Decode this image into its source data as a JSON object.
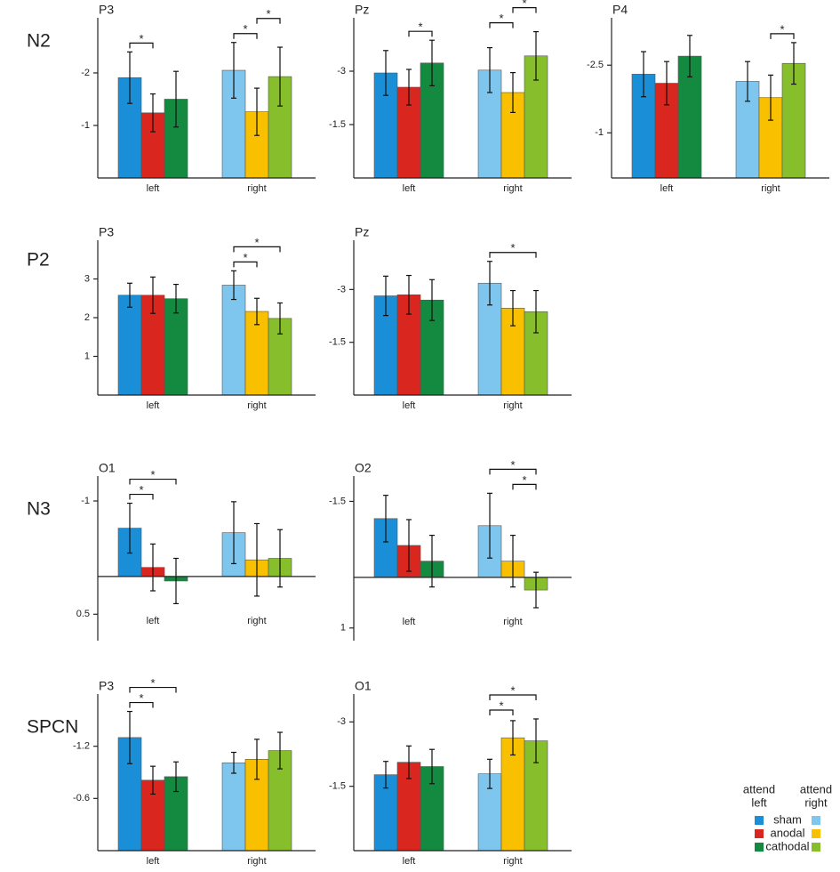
{
  "rows": [
    "N2",
    "P2",
    "N3",
    "SPCN"
  ],
  "legend_headers": [
    [
      "attend",
      "left"
    ],
    [
      "attend",
      "right"
    ]
  ],
  "chart_data": [
    {
      "type": "bar",
      "title": "P3",
      "categories": [
        "left",
        "right"
      ],
      "series": [
        {
          "name": "sham",
          "colors": [
            "#1a8fd8",
            "#7fc6ee"
          ],
          "values": [
            -1.91,
            -2.05
          ],
          "errors": [
            0.49,
            0.53
          ]
        },
        {
          "name": "anodal",
          "colors": [
            "#d9261f",
            "#f9c000"
          ],
          "values": [
            -1.24,
            -1.26
          ],
          "errors": [
            0.36,
            0.45
          ]
        },
        {
          "name": "cathodal",
          "colors": [
            "#138a40",
            "#86be2c"
          ],
          "values": [
            -1.5,
            -1.93
          ],
          "errors": [
            0.53,
            0.56
          ]
        }
      ],
      "ylim": [
        0,
        -3.05
      ],
      "yticks": [
        -2,
        -1
      ],
      "annotations": [
        {
          "label": "*",
          "bars": [
            [
              0,
              0
            ],
            [
              0,
              1
            ]
          ]
        },
        {
          "label": "*",
          "bars": [
            [
              1,
              0
            ],
            [
              1,
              1
            ]
          ]
        },
        {
          "label": "*",
          "bars": [
            [
              1,
              1
            ],
            [
              1,
              2
            ]
          ]
        }
      ]
    },
    {
      "type": "bar",
      "title": "Pz",
      "categories": [
        "left",
        "right"
      ],
      "series": [
        {
          "name": "sham",
          "colors": [
            "#1a8fd8",
            "#7fc6ee"
          ],
          "values": [
            -2.95,
            -3.03
          ],
          "errors": [
            0.63,
            0.63
          ]
        },
        {
          "name": "anodal",
          "colors": [
            "#d9261f",
            "#f9c000"
          ],
          "values": [
            -2.55,
            -2.4
          ],
          "errors": [
            0.5,
            0.56
          ]
        },
        {
          "name": "cathodal",
          "colors": [
            "#138a40",
            "#86be2c"
          ],
          "values": [
            -3.23,
            -3.43
          ],
          "errors": [
            0.64,
            0.68
          ]
        }
      ],
      "ylim": [
        0,
        -4.5
      ],
      "yticks": [
        -3,
        -1.5
      ],
      "annotations": [
        {
          "label": "*",
          "bars": [
            [
              0,
              1
            ],
            [
              0,
              2
            ]
          ]
        },
        {
          "label": "*",
          "bars": [
            [
              1,
              0
            ],
            [
              1,
              1
            ]
          ]
        },
        {
          "label": "*",
          "bars": [
            [
              1,
              1
            ],
            [
              1,
              2
            ]
          ]
        }
      ]
    },
    {
      "type": "bar",
      "title": "P4",
      "categories": [
        "left",
        "right"
      ],
      "series": [
        {
          "name": "sham",
          "colors": [
            "#1a8fd8",
            "#7fc6ee"
          ],
          "values": [
            -2.3,
            -2.14
          ],
          "errors": [
            0.5,
            0.44
          ]
        },
        {
          "name": "anodal",
          "colors": [
            "#d9261f",
            "#f9c000"
          ],
          "values": [
            -2.1,
            -1.78
          ],
          "errors": [
            0.48,
            0.5
          ]
        },
        {
          "name": "cathodal",
          "colors": [
            "#138a40",
            "#86be2c"
          ],
          "values": [
            -2.7,
            -2.54
          ],
          "errors": [
            0.46,
            0.46
          ]
        }
      ],
      "ylim": [
        0,
        -3.55
      ],
      "yticks": [
        -2.5,
        -1
      ],
      "annotations": [
        {
          "label": "*",
          "bars": [
            [
              1,
              1
            ],
            [
              1,
              2
            ]
          ]
        }
      ]
    },
    {
      "type": "bar",
      "title": "P3",
      "categories": [
        "left",
        "right"
      ],
      "series": [
        {
          "name": "sham",
          "colors": [
            "#1a8fd8",
            "#7fc6ee"
          ],
          "values": [
            2.58,
            2.84
          ],
          "errors": [
            0.31,
            0.37
          ]
        },
        {
          "name": "anodal",
          "colors": [
            "#d9261f",
            "#f9c000"
          ],
          "values": [
            2.58,
            2.16
          ],
          "errors": [
            0.47,
            0.34
          ]
        },
        {
          "name": "cathodal",
          "colors": [
            "#138a40",
            "#86be2c"
          ],
          "values": [
            2.49,
            1.98
          ],
          "errors": [
            0.37,
            0.4
          ]
        }
      ],
      "ylim": [
        0,
        4
      ],
      "yticks": [
        1,
        2,
        3
      ],
      "annotations": [
        {
          "label": "*",
          "bars": [
            [
              1,
              0
            ],
            [
              1,
              1
            ]
          ]
        },
        {
          "label": "*",
          "bars": [
            [
              1,
              0
            ],
            [
              1,
              2
            ]
          ]
        }
      ]
    },
    {
      "type": "bar",
      "title": "Pz",
      "categories": [
        "left",
        "right"
      ],
      "series": [
        {
          "name": "sham",
          "colors": [
            "#1a8fd8",
            "#7fc6ee"
          ],
          "values": [
            -2.82,
            -3.18
          ],
          "errors": [
            0.56,
            0.62
          ]
        },
        {
          "name": "anodal",
          "colors": [
            "#d9261f",
            "#f9c000"
          ],
          "values": [
            -2.85,
            -2.47
          ],
          "errors": [
            0.55,
            0.5
          ]
        },
        {
          "name": "cathodal",
          "colors": [
            "#138a40",
            "#86be2c"
          ],
          "values": [
            -2.7,
            -2.37
          ],
          "errors": [
            0.58,
            0.6
          ]
        }
      ],
      "ylim": [
        0,
        -4.4
      ],
      "yticks": [
        -3,
        -1.5
      ],
      "annotations": [
        {
          "label": "*",
          "bars": [
            [
              1,
              0
            ],
            [
              1,
              2
            ]
          ]
        }
      ]
    },
    {
      "type": "bar",
      "title": "O1",
      "categories": [
        "left",
        "right"
      ],
      "series": [
        {
          "name": "sham",
          "colors": [
            "#1a8fd8",
            "#7fc6ee"
          ],
          "values": [
            -0.64,
            -0.58
          ],
          "errors": [
            0.33,
            0.41
          ]
        },
        {
          "name": "anodal",
          "colors": [
            "#d9261f",
            "#f9c000"
          ],
          "values": [
            -0.12,
            -0.22
          ],
          "errors": [
            0.31,
            0.48
          ]
        },
        {
          "name": "cathodal",
          "colors": [
            "#138a40",
            "#86be2c"
          ],
          "values": [
            0.06,
            -0.24
          ],
          "errors": [
            0.3,
            0.38
          ]
        }
      ],
      "ylim": [
        0.85,
        -1.33
      ],
      "yticks": [
        -1,
        0.5
      ],
      "annotations": [
        {
          "label": "*",
          "bars": [
            [
              0,
              0
            ],
            [
              0,
              1
            ]
          ]
        },
        {
          "label": "*",
          "bars": [
            [
              0,
              0
            ],
            [
              0,
              2
            ]
          ]
        }
      ]
    },
    {
      "type": "bar",
      "title": "O2",
      "categories": [
        "left",
        "right"
      ],
      "series": [
        {
          "name": "sham",
          "colors": [
            "#1a8fd8",
            "#7fc6ee"
          ],
          "values": [
            -1.16,
            -1.02
          ],
          "errors": [
            0.46,
            0.64
          ]
        },
        {
          "name": "anodal",
          "colors": [
            "#d9261f",
            "#f9c000"
          ],
          "values": [
            -0.63,
            -0.32
          ],
          "errors": [
            0.51,
            0.51
          ]
        },
        {
          "name": "cathodal",
          "colors": [
            "#138a40",
            "#86be2c"
          ],
          "values": [
            -0.32,
            0.25
          ],
          "errors": [
            0.51,
            0.35
          ]
        }
      ],
      "ylim": [
        1.25,
        -2
      ],
      "yticks": [
        -1.5,
        1
      ],
      "annotations": [
        {
          "label": "*",
          "bars": [
            [
              1,
              1
            ],
            [
              1,
              2
            ]
          ]
        },
        {
          "label": "*",
          "bars": [
            [
              1,
              0
            ],
            [
              1,
              2
            ]
          ]
        }
      ]
    },
    {
      "type": "bar",
      "title": "P3",
      "categories": [
        "left",
        "right"
      ],
      "series": [
        {
          "name": "sham",
          "colors": [
            "#1a8fd8",
            "#7fc6ee"
          ],
          "values": [
            -1.3,
            -1.01
          ],
          "errors": [
            0.3,
            0.12
          ]
        },
        {
          "name": "anodal",
          "colors": [
            "#d9261f",
            "#f9c000"
          ],
          "values": [
            -0.81,
            -1.05
          ],
          "errors": [
            0.16,
            0.23
          ]
        },
        {
          "name": "cathodal",
          "colors": [
            "#138a40",
            "#86be2c"
          ],
          "values": [
            -0.85,
            -1.15
          ],
          "errors": [
            0.17,
            0.21
          ]
        }
      ],
      "ylim": [
        0,
        -1.8
      ],
      "yticks": [
        -1.2,
        -0.6
      ],
      "annotations": [
        {
          "label": "*",
          "bars": [
            [
              0,
              0
            ],
            [
              0,
              1
            ]
          ]
        },
        {
          "label": "*",
          "bars": [
            [
              0,
              0
            ],
            [
              0,
              2
            ]
          ]
        }
      ]
    },
    {
      "type": "bar",
      "title": "O1",
      "categories": [
        "left",
        "right"
      ],
      "series": [
        {
          "name": "sham",
          "colors": [
            "#1a8fd8",
            "#7fc6ee"
          ],
          "values": [
            -1.77,
            -1.79
          ],
          "errors": [
            0.31,
            0.34
          ]
        },
        {
          "name": "anodal",
          "colors": [
            "#d9261f",
            "#f9c000"
          ],
          "values": [
            -2.06,
            -2.63
          ],
          "errors": [
            0.38,
            0.4
          ]
        },
        {
          "name": "cathodal",
          "colors": [
            "#138a40",
            "#86be2c"
          ],
          "values": [
            -1.96,
            -2.56
          ],
          "errors": [
            0.4,
            0.51
          ]
        }
      ],
      "ylim": [
        0,
        -3.65
      ],
      "yticks": [
        -3,
        -1.5
      ],
      "annotations": [
        {
          "label": "*",
          "bars": [
            [
              1,
              0
            ],
            [
              1,
              1
            ]
          ]
        },
        {
          "label": "*",
          "bars": [
            [
              1,
              0
            ],
            [
              1,
              2
            ]
          ]
        }
      ]
    }
  ]
}
